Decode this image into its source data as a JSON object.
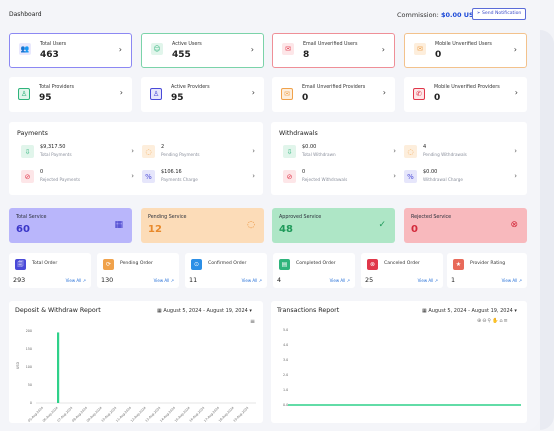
{
  "header": {
    "title": "Dashboard",
    "commission_label": "Commission:",
    "commission_value": "$0.00 USD",
    "notify_button": "Send Notification"
  },
  "kpis_row1": [
    {
      "label": "Total Users",
      "value": "463",
      "color": "#6b6bf0",
      "bg": "#e9e8fd",
      "border": "#8c88f3"
    },
    {
      "label": "Active Users",
      "value": "455",
      "color": "#2fb47c",
      "bg": "#e1f5eb",
      "border": "#7bd3a9"
    },
    {
      "label": "Email Unverified Users",
      "value": "8",
      "color": "#e0374a",
      "bg": "#fde6e8",
      "border": "#ef8f97"
    },
    {
      "label": "Mobile Unverified Users",
      "value": "0",
      "color": "#f0a24b",
      "bg": "#fdeedc",
      "border": "#f3c28c"
    }
  ],
  "kpis_row2": [
    {
      "label": "Total Providers",
      "value": "95",
      "color": "#2fb47c",
      "bg": "#e1f5eb"
    },
    {
      "label": "Active Providers",
      "value": "95",
      "color": "#4a4ad8",
      "bg": "#e6e6fb"
    },
    {
      "label": "Email Unverified Providers",
      "value": "0",
      "color": "#f0a24b",
      "bg": "#fdeedc"
    },
    {
      "label": "Mobile Unverified Providers",
      "value": "0",
      "color": "#e0374a",
      "bg": "#fde6e8"
    }
  ],
  "payments": {
    "title": "Payments",
    "items": [
      {
        "value": "$9,317.50",
        "label": "Total Payments",
        "color": "#2fb47c",
        "bg": "#e1f5eb"
      },
      {
        "value": "2",
        "label": "Pending Payments",
        "color": "#f0a24b",
        "bg": "#fdeedc"
      },
      {
        "value": "0",
        "label": "Rejected Payments",
        "color": "#e0374a",
        "bg": "#fde6e8"
      },
      {
        "value": "$106.16",
        "label": "Payments Charge",
        "color": "#4a4ad8",
        "bg": "#e6e6fb"
      }
    ]
  },
  "withdrawals": {
    "title": "Withdrawals",
    "items": [
      {
        "value": "$0.00",
        "label": "Total Withdrawn",
        "color": "#2fb47c",
        "bg": "#e1f5eb"
      },
      {
        "value": "4",
        "label": "Pending Withdrawals",
        "color": "#f0a24b",
        "bg": "#fdeedc"
      },
      {
        "value": "0",
        "label": "Rejected Withdrawals",
        "color": "#e0374a",
        "bg": "#fde6e8"
      },
      {
        "value": "$0.00",
        "label": "Withdrawal Charge",
        "color": "#4a4ad8",
        "bg": "#e6e6fb"
      }
    ]
  },
  "services": [
    {
      "label": "Total Service",
      "value": "60",
      "bg": "#b9b6fb",
      "color": "#3a36c8"
    },
    {
      "label": "Pending Service",
      "value": "12",
      "bg": "#fcdcb8",
      "color": "#e8892b"
    },
    {
      "label": "Approved Service",
      "value": "48",
      "bg": "#aee6c6",
      "color": "#1f9a5a"
    },
    {
      "label": "Rejected Service",
      "value": "0",
      "bg": "#f8b9bd",
      "color": "#d32a3b"
    }
  ],
  "orders": {
    "view_all": "View All",
    "items": [
      {
        "label": "Total Order",
        "value": "293",
        "color": "#4a4ad8"
      },
      {
        "label": "Pending Order",
        "value": "130",
        "color": "#f0a24b"
      },
      {
        "label": "Confirmed Order",
        "value": "11",
        "color": "#2c8fe6"
      },
      {
        "label": "Completed Order",
        "value": "4",
        "color": "#2fb47c"
      },
      {
        "label": "Canceled Order",
        "value": "25",
        "color": "#e0374a"
      },
      {
        "label": "Provider Rating",
        "value": "1",
        "color": "#e86a5a"
      }
    ]
  },
  "deposit_report": {
    "title": "Deposit & Withdraw Report",
    "date_range": "August 5, 2024 - August 19, 2024"
  },
  "transactions_report": {
    "title": "Transactions Report",
    "date_range": "August 5, 2024 - August 19, 2024"
  },
  "chart_data": [
    {
      "type": "bar",
      "ylabel": "USD",
      "ylim": [
        0,
        200
      ],
      "yticks": [
        "200",
        "150",
        "100",
        "50",
        "0"
      ],
      "categories": [
        "05-Aug-2024",
        "06-Aug-2024",
        "07-Aug-2024",
        "08-Aug-2024",
        "09-Aug-2024",
        "10-Aug-2024",
        "11-Aug-2024",
        "12-Aug-2024",
        "13-Aug-2024",
        "14-Aug-2024",
        "15-Aug-2024",
        "16-Aug-2024",
        "17-Aug-2024",
        "18-Aug-2024",
        "19-Aug-2024"
      ],
      "values": [
        0,
        0,
        0,
        0,
        0,
        0,
        0,
        0,
        0,
        0,
        0,
        0,
        0,
        0,
        0
      ],
      "highlight_value": 196,
      "bar_color": "#2fd18a"
    },
    {
      "type": "line",
      "ylim": [
        0,
        5
      ],
      "yticks": [
        "5.0",
        "4.0",
        "3.0",
        "2.0",
        "1.0",
        "0.0"
      ],
      "values": [
        0,
        0,
        0,
        0,
        0,
        0,
        0,
        0,
        0,
        0,
        0,
        0,
        0,
        0,
        0
      ],
      "line_color": "#2fd18a"
    }
  ]
}
